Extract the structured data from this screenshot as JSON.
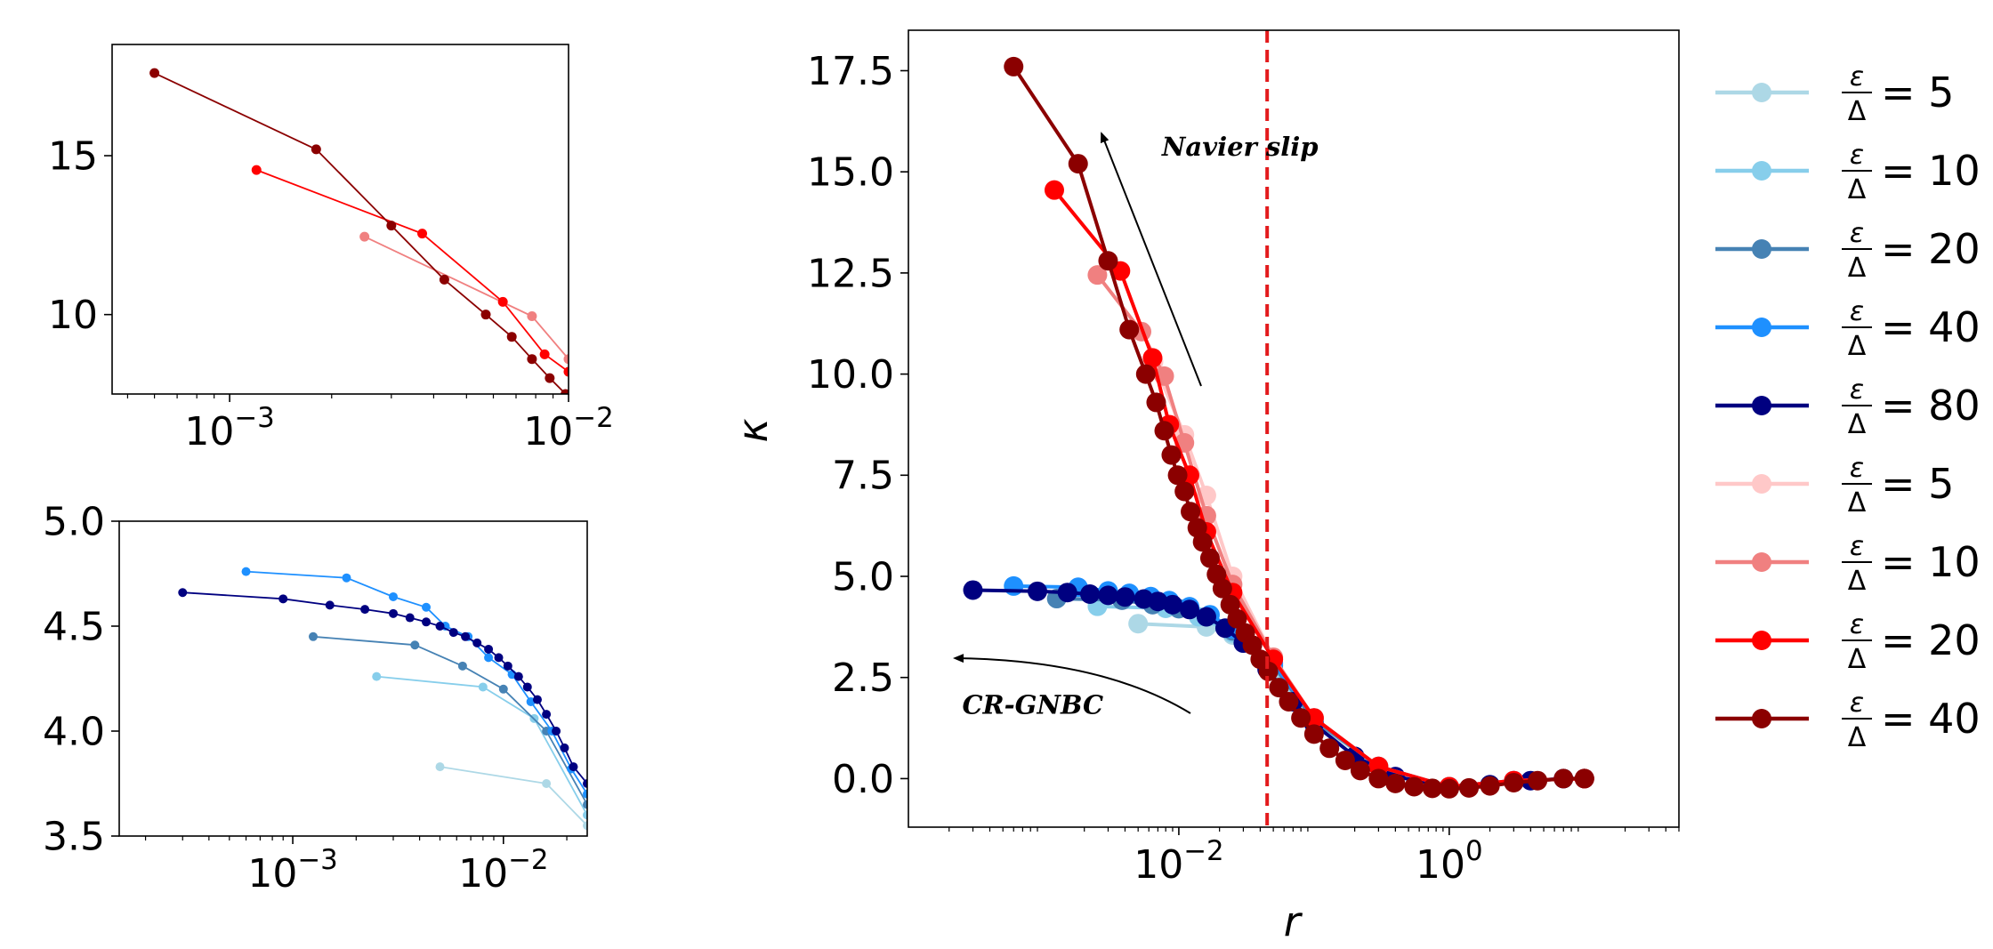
{
  "chart_data": [
    {
      "id": "main",
      "type": "line",
      "xscale": "log",
      "xlabel": "r",
      "ylabel": "κ",
      "xlim": [
        0.0001,
        50
      ],
      "ylim": [
        -1.2,
        18.5
      ],
      "xticks": [
        {
          "v": 0.01,
          "base": "10",
          "exp": "−2"
        },
        {
          "v": 1,
          "base": "10",
          "exp": "0"
        }
      ],
      "yticks": [
        {
          "v": 0,
          "label": "0.0"
        },
        {
          "v": 2.5,
          "label": "2.5"
        },
        {
          "v": 5,
          "label": "5.0"
        },
        {
          "v": 7.5,
          "label": "7.5"
        },
        {
          "v": 10,
          "label": "10.0"
        },
        {
          "v": 12.5,
          "label": "12.5"
        },
        {
          "v": 15,
          "label": "15.0"
        },
        {
          "v": 17.5,
          "label": "17.5"
        }
      ],
      "vline": {
        "x": 0.045,
        "color": "#e31a1c"
      },
      "annotations": [
        {
          "text": "Navier slip",
          "x": 0.0075,
          "y": 15.4
        },
        {
          "text": "CR-GNBC",
          "x": 0.00025,
          "y": 1.6
        }
      ],
      "legend": {
        "position": "outside-right",
        "entries": [
          {
            "num": "ε",
            "den": "Δ",
            "eq": "= 5",
            "color": "#add8e6"
          },
          {
            "num": "ε",
            "den": "Δ",
            "eq": "= 10",
            "color": "#87ceeb"
          },
          {
            "num": "ε",
            "den": "Δ",
            "eq": "= 20",
            "color": "#4682b4"
          },
          {
            "num": "ε",
            "den": "Δ",
            "eq": "= 40",
            "color": "#1e90ff"
          },
          {
            "num": "ε",
            "den": "Δ",
            "eq": "= 80",
            "color": "#000080"
          },
          {
            "num": "ε",
            "den": "Δ",
            "eq": "= 5",
            "color": "#ffc8c8"
          },
          {
            "num": "ε",
            "den": "Δ",
            "eq": "= 10",
            "color": "#f08080"
          },
          {
            "num": "ε",
            "den": "Δ",
            "eq": "= 20",
            "color": "#ff0000"
          },
          {
            "num": "ε",
            "den": "Δ",
            "eq": "= 40",
            "color": "#8b0000"
          }
        ]
      },
      "series": [
        {
          "color": "#add8e6",
          "x": [
            0.005,
            0.016,
            0.025,
            0.05,
            0.1,
            0.3,
            1,
            3,
            10
          ],
          "y": [
            3.83,
            3.75,
            3.55,
            2.7,
            1.4,
            0.3,
            -0.2,
            -0.05,
            0
          ]
        },
        {
          "color": "#87ceeb",
          "x": [
            0.0025,
            0.008,
            0.014,
            0.025,
            0.05,
            0.1,
            0.3,
            1,
            3,
            10
          ],
          "y": [
            4.26,
            4.21,
            4.0,
            3.6,
            2.75,
            1.45,
            0.3,
            -0.2,
            -0.05,
            0
          ]
        },
        {
          "color": "#4682b4",
          "x": [
            0.00125,
            0.0038,
            0.0064,
            0.01,
            0.016,
            0.025,
            0.05,
            0.1,
            0.3,
            1,
            3,
            10
          ],
          "y": [
            4.45,
            4.41,
            4.3,
            4.2,
            4.0,
            3.65,
            2.8,
            1.45,
            0.3,
            -0.2,
            -0.05,
            0
          ]
        },
        {
          "color": "#1e90ff",
          "x": [
            0.0006,
            0.0018,
            0.003,
            0.0043,
            0.0062,
            0.0085,
            0.012,
            0.017,
            0.025,
            0.05,
            0.1,
            0.3,
            1,
            3,
            10
          ],
          "y": [
            4.76,
            4.73,
            4.64,
            4.58,
            4.5,
            4.4,
            4.25,
            4.05,
            3.7,
            2.85,
            1.5,
            0.3,
            -0.2,
            -0.05,
            0
          ]
        },
        {
          "color": "#000080",
          "x": [
            0.0003,
            0.0009,
            0.0015,
            0.0022,
            0.003,
            0.004,
            0.0055,
            0.007,
            0.009,
            0.012,
            0.016,
            0.022,
            0.03,
            0.045,
            0.07,
            0.1,
            0.2,
            0.4,
            1,
            2,
            4,
            7,
            10
          ],
          "y": [
            4.66,
            4.63,
            4.6,
            4.56,
            4.53,
            4.49,
            4.44,
            4.38,
            4.3,
            4.18,
            4.0,
            3.72,
            3.35,
            2.7,
            1.9,
            1.35,
            0.55,
            0.05,
            -0.2,
            -0.15,
            -0.05,
            0,
            0
          ]
        },
        {
          "color": "#ffc8c8",
          "x": [
            0.0065,
            0.011,
            0.016,
            0.025,
            0.05,
            0.1,
            0.3,
            1,
            3,
            10
          ],
          "y": [
            10.3,
            8.5,
            7.0,
            5.0,
            3.0,
            1.5,
            0.3,
            -0.2,
            -0.05,
            0
          ]
        },
        {
          "color": "#f08080",
          "x": [
            0.0025,
            0.0053,
            0.0078,
            0.011,
            0.016,
            0.025,
            0.05,
            0.1,
            0.3,
            1,
            3,
            10
          ],
          "y": [
            12.45,
            11.05,
            9.95,
            8.3,
            6.5,
            4.8,
            3.0,
            1.5,
            0.3,
            -0.2,
            -0.05,
            0
          ]
        },
        {
          "color": "#ff0000",
          "x": [
            0.0012,
            0.0037,
            0.0064,
            0.0085,
            0.012,
            0.016,
            0.025,
            0.05,
            0.1,
            0.3,
            1,
            3,
            10
          ],
          "y": [
            14.55,
            12.55,
            10.4,
            8.75,
            7.5,
            6.1,
            4.6,
            2.95,
            1.5,
            0.3,
            -0.2,
            -0.05,
            0
          ]
        },
        {
          "color": "#8b0000",
          "x": [
            0.0006,
            0.0018,
            0.003,
            0.0043,
            0.0057,
            0.0068,
            0.0078,
            0.0088,
            0.0098,
            0.011,
            0.0122,
            0.0137,
            0.015,
            0.017,
            0.019,
            0.021,
            0.024,
            0.027,
            0.031,
            0.035,
            0.04,
            0.046,
            0.055,
            0.065,
            0.08,
            0.1,
            0.13,
            0.17,
            0.22,
            0.3,
            0.4,
            0.55,
            0.75,
            1,
            1.4,
            2,
            3,
            4.5,
            7,
            10
          ],
          "y": [
            17.6,
            15.2,
            12.8,
            11.1,
            10.0,
            9.3,
            8.6,
            8.0,
            7.5,
            7.1,
            6.6,
            6.2,
            5.85,
            5.45,
            5.05,
            4.7,
            4.3,
            3.95,
            3.6,
            3.3,
            2.95,
            2.65,
            2.25,
            1.9,
            1.5,
            1.1,
            0.75,
            0.45,
            0.2,
            0.0,
            -0.12,
            -0.2,
            -0.24,
            -0.25,
            -0.23,
            -0.18,
            -0.1,
            -0.05,
            0,
            0
          ]
        }
      ]
    },
    {
      "id": "inset-top",
      "type": "line",
      "xscale": "log",
      "xlim": [
        0.00045,
        0.01
      ],
      "ylim": [
        7.5,
        18.5
      ],
      "xticks": [
        {
          "v": 0.001,
          "base": "10",
          "exp": "−3"
        },
        {
          "v": 0.01,
          "base": "10",
          "exp": "−2"
        }
      ],
      "yticks": [
        {
          "v": 10,
          "label": "10"
        },
        {
          "v": 15,
          "label": "15"
        }
      ],
      "series": [
        {
          "color": "#f08080",
          "x": [
            0.0025,
            0.0078,
            0.01
          ],
          "y": [
            12.45,
            9.95,
            8.6
          ]
        },
        {
          "color": "#ff0000",
          "x": [
            0.0012,
            0.0037,
            0.0064,
            0.0085,
            0.01
          ],
          "y": [
            14.55,
            12.55,
            10.4,
            8.75,
            8.2
          ]
        },
        {
          "color": "#8b0000",
          "x": [
            0.0006,
            0.0018,
            0.003,
            0.0043,
            0.0057,
            0.0068,
            0.0078,
            0.0088,
            0.0098,
            0.01
          ],
          "y": [
            17.6,
            15.2,
            12.8,
            11.1,
            10.0,
            9.3,
            8.6,
            8.0,
            7.5,
            7.4
          ]
        }
      ]
    },
    {
      "id": "inset-bottom",
      "type": "line",
      "xscale": "log",
      "xlim": [
        0.00015,
        0.025
      ],
      "ylim": [
        3.5,
        5.0
      ],
      "xticks": [
        {
          "v": 0.001,
          "base": "10",
          "exp": "−3"
        },
        {
          "v": 0.01,
          "base": "10",
          "exp": "−2"
        }
      ],
      "yticks": [
        {
          "v": 3.5,
          "label": "3.5"
        },
        {
          "v": 4,
          "label": "4.0"
        },
        {
          "v": 4.5,
          "label": "4.5"
        },
        {
          "v": 5,
          "label": "5.0"
        }
      ],
      "series": [
        {
          "color": "#add8e6",
          "x": [
            0.005,
            0.016,
            0.025
          ],
          "y": [
            3.83,
            3.75,
            3.55
          ]
        },
        {
          "color": "#87ceeb",
          "x": [
            0.0025,
            0.008,
            0.014,
            0.025
          ],
          "y": [
            4.26,
            4.21,
            4.06,
            3.6
          ]
        },
        {
          "color": "#4682b4",
          "x": [
            0.00125,
            0.0038,
            0.0064,
            0.01,
            0.016,
            0.025
          ],
          "y": [
            4.45,
            4.41,
            4.31,
            4.2,
            4.0,
            3.65
          ]
        },
        {
          "color": "#1e90ff",
          "x": [
            0.0006,
            0.0018,
            0.003,
            0.0043,
            0.0053,
            0.0068,
            0.0085,
            0.011,
            0.0135,
            0.017,
            0.021,
            0.025
          ],
          "y": [
            4.76,
            4.73,
            4.64,
            4.59,
            4.5,
            4.45,
            4.35,
            4.27,
            4.14,
            4.0,
            3.82,
            3.7
          ]
        },
        {
          "color": "#000080",
          "x": [
            0.0003,
            0.0009,
            0.0015,
            0.0022,
            0.003,
            0.0036,
            0.0043,
            0.005,
            0.0058,
            0.0066,
            0.0075,
            0.0085,
            0.0095,
            0.0105,
            0.0118,
            0.013,
            0.0145,
            0.016,
            0.0178,
            0.0195,
            0.0215,
            0.025
          ],
          "y": [
            4.66,
            4.63,
            4.6,
            4.58,
            4.56,
            4.54,
            4.52,
            4.5,
            4.47,
            4.45,
            4.42,
            4.39,
            4.35,
            4.31,
            4.26,
            4.21,
            4.15,
            4.08,
            4.0,
            3.92,
            3.83,
            3.75
          ]
        }
      ]
    }
  ]
}
